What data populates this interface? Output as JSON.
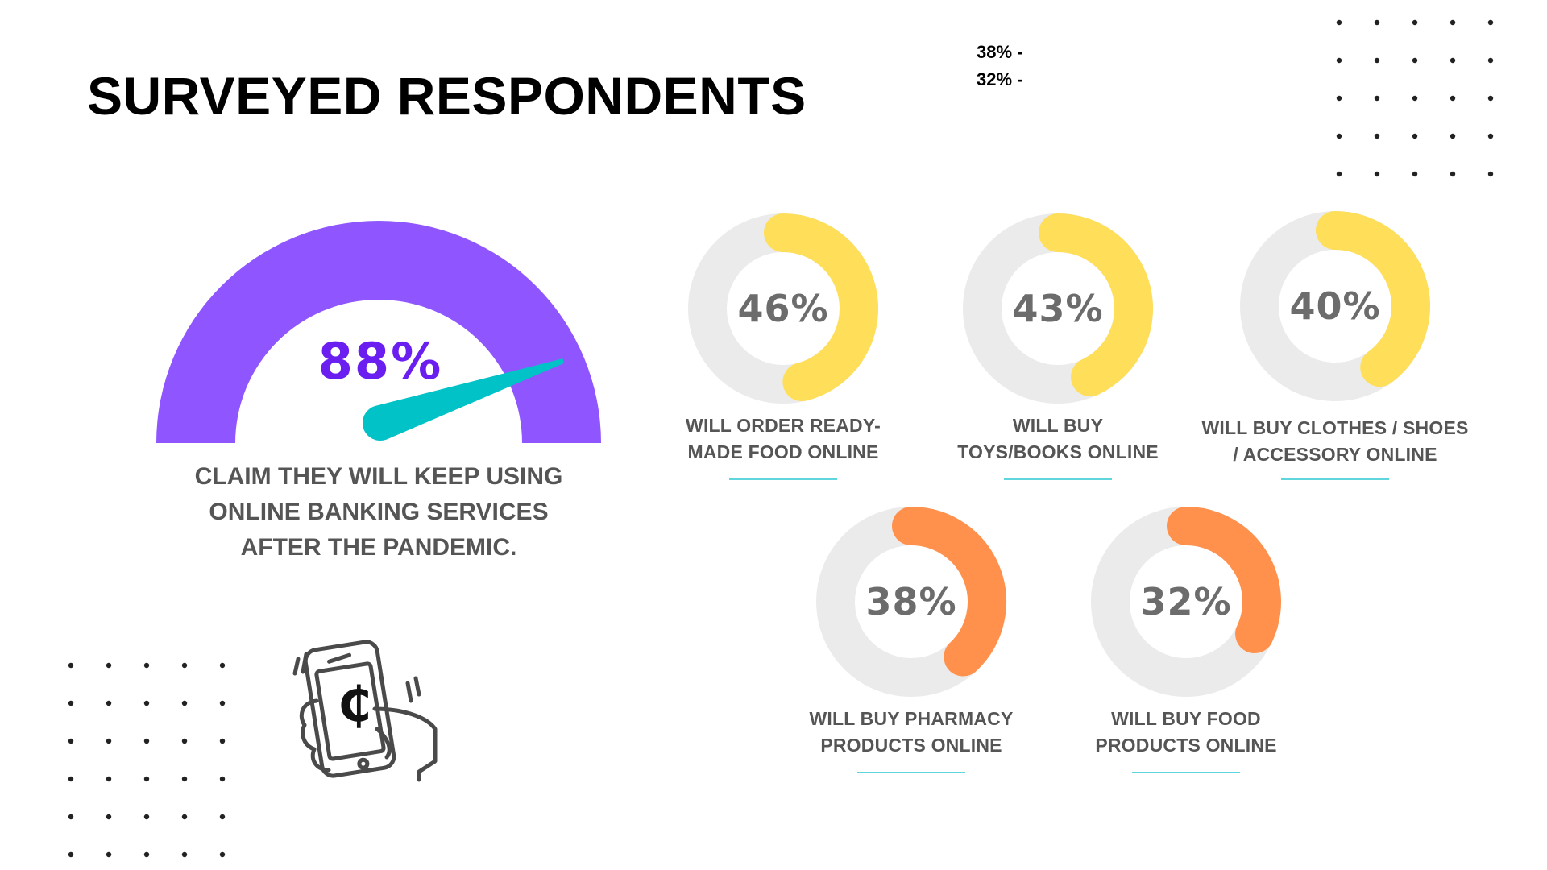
{
  "title": "SURVEYED RESPONDENTS",
  "stray_labels": [
    "38% -",
    "32% -"
  ],
  "colors": {
    "gauge": "#8f55ff",
    "needle": "#00c2c7",
    "gauge_text": "#6a1ff0",
    "donut_track": "#ebebeb",
    "donut_yellow": "#ffde59",
    "donut_orange": "#ff914d",
    "label_text": "#555555",
    "underline": "#5fd6dc"
  },
  "gauge": {
    "value_label": "88%",
    "caption_lines": [
      "CLAIM THEY WILL KEEP USING",
      "ONLINE BANKING SERVICES",
      "AFTER THE PANDEMIC."
    ]
  },
  "icon": {
    "name": "hand-holding-phone-icon",
    "currency_symbol": "₵"
  },
  "chart_data": [
    {
      "type": "gauge",
      "value": 88,
      "unit": "%",
      "label": "88%"
    },
    {
      "type": "pie",
      "subtype": "donut",
      "items": [
        {
          "value": 46,
          "label": "46%",
          "lines": [
            "WILL ORDER READY-",
            "MADE FOOD ONLINE"
          ],
          "color": "#ffde59"
        },
        {
          "value": 43,
          "label": "43%",
          "lines": [
            "WILL BUY",
            "TOYS/BOOKS ONLINE"
          ],
          "color": "#ffde59"
        },
        {
          "value": 40,
          "label": "40%",
          "lines": [
            "WILL BUY CLOTHES / SHOES",
            "/ ACCESSORY ONLINE"
          ],
          "color": "#ffde59"
        },
        {
          "value": 38,
          "label": "38%",
          "lines": [
            "WILL BUY PHARMACY",
            "PRODUCTS ONLINE"
          ],
          "color": "#ff914d"
        },
        {
          "value": 32,
          "label": "32%",
          "lines": [
            "WILL BUY FOOD",
            "PRODUCTS ONLINE"
          ],
          "color": "#ff914d"
        }
      ]
    }
  ]
}
